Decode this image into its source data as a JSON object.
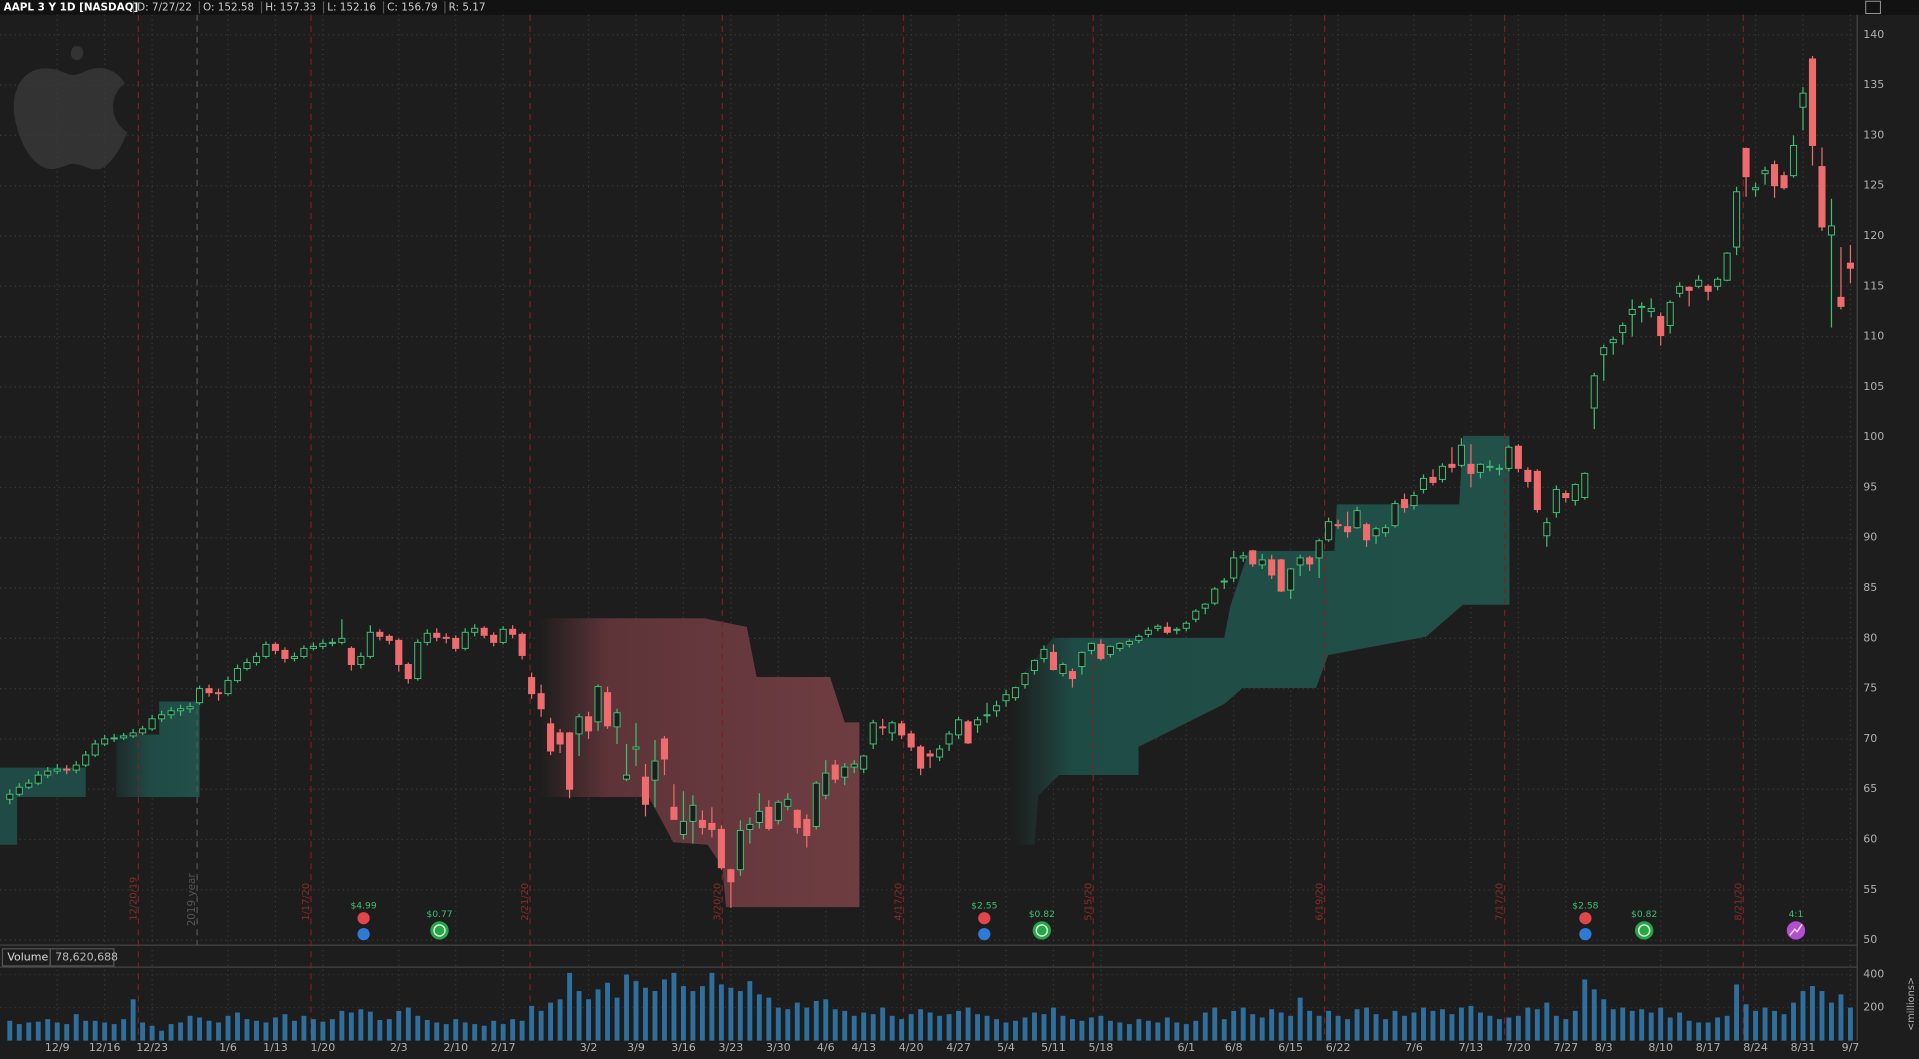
{
  "header": {
    "symbol": "AAPL 3 Y 1D [NASDAQ]",
    "fields": [
      "D: 7/27/22",
      "O: 152.58",
      "H: 157.33",
      "L: 152.16",
      "C: 156.79",
      "R: 5.17"
    ]
  },
  "chart_data": {
    "type": "candlestick",
    "categories": [
      null,
      null,
      null,
      null,
      null,
      "12/9",
      null,
      null,
      null,
      null,
      "12/16",
      null,
      null,
      null,
      null,
      "12/23",
      null,
      null,
      null,
      null,
      null,
      null,
      null,
      "1/6",
      null,
      null,
      null,
      null,
      "1/13",
      null,
      null,
      null,
      null,
      "1/20",
      null,
      null,
      null,
      null,
      null,
      null,
      null,
      "2/3",
      null,
      null,
      null,
      null,
      null,
      "2/10",
      null,
      null,
      null,
      null,
      "2/17",
      null,
      null,
      null,
      null,
      null,
      null,
      null,
      null,
      "3/2",
      null,
      null,
      null,
      null,
      "3/9",
      null,
      null,
      null,
      null,
      "3/16",
      null,
      null,
      null,
      null,
      "3/23",
      null,
      null,
      null,
      null,
      "3/30",
      null,
      null,
      null,
      null,
      "4/6",
      null,
      null,
      null,
      "4/13",
      null,
      null,
      null,
      null,
      "4/20",
      null,
      null,
      null,
      null,
      "4/27",
      null,
      null,
      null,
      null,
      "5/4",
      null,
      null,
      null,
      null,
      "5/11",
      null,
      null,
      null,
      null,
      "5/18",
      null,
      null,
      null,
      null,
      null,
      null,
      null,
      null,
      "6/1",
      null,
      null,
      null,
      null,
      "6/8",
      null,
      null,
      null,
      null,
      null,
      "6/15",
      null,
      null,
      null,
      null,
      "6/22",
      null,
      null,
      null,
      null,
      null,
      null,
      null,
      "7/6",
      null,
      null,
      null,
      null,
      null,
      "7/13",
      null,
      null,
      null,
      null,
      "7/20",
      null,
      null,
      null,
      null,
      "7/27",
      null,
      null,
      null,
      "8/3",
      null,
      null,
      null,
      null,
      null,
      "8/10",
      null,
      null,
      null,
      null,
      "8/17",
      null,
      null,
      null,
      null,
      "8/24",
      null,
      null,
      null,
      null,
      "8/31",
      null,
      null,
      null,
      null,
      "9/7"
    ],
    "candles": [
      [
        64.0,
        65.0,
        63.5,
        64.5
      ],
      [
        64.5,
        65.6,
        64.3,
        65.2
      ],
      [
        65.2,
        66.0,
        65.0,
        65.6
      ],
      [
        65.6,
        66.8,
        65.4,
        66.4
      ],
      [
        66.4,
        67.2,
        66.1,
        66.8
      ],
      [
        66.8,
        67.5,
        66.5,
        67.0
      ],
      [
        67.0,
        67.4,
        66.5,
        66.9
      ],
      [
        66.9,
        67.8,
        66.6,
        67.4
      ],
      [
        67.4,
        68.8,
        67.2,
        68.4
      ],
      [
        68.4,
        69.9,
        68.2,
        69.5
      ],
      [
        69.5,
        70.4,
        69.3,
        70.0
      ],
      [
        70.0,
        70.5,
        69.7,
        70.1
      ],
      [
        70.1,
        70.6,
        69.9,
        70.3
      ],
      [
        70.3,
        71.0,
        70.1,
        70.6
      ],
      [
        70.6,
        71.3,
        70.4,
        71.0
      ],
      [
        71.0,
        72.4,
        70.8,
        72.0
      ],
      [
        72.0,
        72.8,
        71.7,
        72.4
      ],
      [
        72.4,
        73.2,
        72.0,
        72.8
      ],
      [
        72.8,
        73.4,
        72.3,
        73.0
      ],
      [
        73.0,
        73.6,
        72.6,
        73.2
      ],
      [
        73.6,
        75.3,
        73.4,
        75.0
      ],
      [
        75.0,
        75.4,
        74.2,
        74.6
      ],
      [
        74.6,
        75.0,
        73.8,
        74.5
      ],
      [
        74.5,
        76.2,
        74.3,
        75.8
      ],
      [
        75.8,
        77.4,
        75.6,
        77.0
      ],
      [
        77.0,
        78.0,
        76.8,
        77.6
      ],
      [
        77.6,
        78.6,
        77.3,
        78.2
      ],
      [
        78.2,
        79.7,
        78.0,
        79.4
      ],
      [
        79.4,
        79.6,
        78.4,
        78.8
      ],
      [
        78.8,
        79.1,
        77.6,
        78.0
      ],
      [
        78.0,
        78.6,
        77.7,
        78.2
      ],
      [
        78.2,
        79.3,
        78.0,
        79.0
      ],
      [
        79.0,
        79.6,
        78.8,
        79.2
      ],
      [
        79.2,
        79.9,
        78.9,
        79.5
      ],
      [
        79.5,
        80.0,
        79.2,
        79.6
      ],
      [
        79.6,
        81.9,
        79.4,
        80.0
      ],
      [
        79.0,
        79.2,
        76.8,
        77.4
      ],
      [
        77.4,
        78.6,
        77.0,
        78.2
      ],
      [
        78.2,
        81.3,
        78.0,
        80.6
      ],
      [
        80.6,
        80.9,
        79.8,
        80.2
      ],
      [
        80.2,
        80.4,
        79.4,
        79.8
      ],
      [
        79.8,
        80.0,
        76.7,
        77.4
      ],
      [
        77.4,
        77.6,
        75.5,
        76.0
      ],
      [
        76.0,
        79.9,
        75.8,
        79.6
      ],
      [
        79.6,
        80.9,
        79.3,
        80.5
      ],
      [
        80.5,
        81.0,
        79.7,
        80.1
      ],
      [
        80.1,
        80.5,
        79.5,
        80.0
      ],
      [
        80.0,
        80.3,
        78.7,
        79.0
      ],
      [
        79.0,
        81.0,
        78.8,
        80.6
      ],
      [
        80.6,
        81.4,
        80.2,
        81.0
      ],
      [
        81.0,
        81.2,
        80.0,
        80.3
      ],
      [
        80.3,
        80.6,
        79.2,
        79.6
      ],
      [
        79.6,
        81.2,
        79.4,
        80.9
      ],
      [
        80.9,
        81.3,
        80.0,
        80.4
      ],
      [
        80.4,
        80.6,
        77.9,
        78.3
      ],
      [
        76.1,
        76.6,
        74.0,
        74.5
      ],
      [
        74.5,
        75.4,
        72.2,
        73.0
      ],
      [
        71.5,
        72.1,
        68.4,
        68.8
      ],
      [
        70.6,
        71.0,
        68.6,
        69.5
      ],
      [
        70.6,
        70.7,
        64.1,
        65.0
      ],
      [
        70.5,
        72.5,
        68.3,
        72.2
      ],
      [
        72.2,
        72.7,
        70.0,
        70.8
      ],
      [
        71.7,
        75.4,
        70.8,
        75.2
      ],
      [
        74.6,
        75.2,
        71.0,
        71.3
      ],
      [
        71.2,
        73.0,
        69.5,
        72.6
      ],
      [
        66.0,
        69.5,
        65.8,
        66.4
      ],
      [
        69.0,
        71.6,
        67.3,
        69.2
      ],
      [
        66.2,
        67.5,
        62.3,
        63.5
      ],
      [
        65.9,
        69.9,
        63.2,
        67.8
      ],
      [
        70.0,
        70.3,
        66.4,
        68.0
      ],
      [
        63.2,
        65.5,
        62.0,
        62.0
      ],
      [
        60.5,
        64.8,
        60.0,
        61.8
      ],
      [
        61.8,
        64.4,
        59.6,
        63.4
      ],
      [
        61.9,
        62.9,
        60.5,
        61.2
      ],
      [
        61.6,
        63.2,
        60.2,
        61.0
      ],
      [
        61.0,
        61.4,
        57.0,
        57.2
      ],
      [
        57.0,
        57.1,
        53.2,
        55.8
      ],
      [
        57.0,
        61.9,
        56.4,
        60.9
      ],
      [
        61.0,
        62.2,
        59.6,
        61.5
      ],
      [
        61.7,
        64.6,
        61.1,
        62.8
      ],
      [
        63.2,
        63.9,
        60.9,
        61.1
      ],
      [
        61.9,
        63.9,
        61.5,
        63.7
      ],
      [
        63.3,
        64.6,
        62.9,
        64.0
      ],
      [
        62.9,
        63.0,
        60.6,
        61.2
      ],
      [
        62.0,
        62.5,
        59.2,
        60.4
      ],
      [
        61.3,
        65.8,
        61.0,
        65.6
      ],
      [
        64.4,
        67.9,
        64.0,
        66.6
      ],
      [
        67.4,
        67.9,
        65.6,
        66.0
      ],
      [
        66.2,
        67.6,
        65.4,
        67.2
      ],
      [
        67.2,
        67.9,
        66.6,
        67.5
      ],
      [
        67.0,
        68.4,
        66.6,
        68.3
      ],
      [
        69.5,
        71.9,
        69.0,
        71.6
      ],
      [
        71.2,
        72.0,
        70.4,
        71.1
      ],
      [
        70.6,
        71.8,
        69.8,
        71.6
      ],
      [
        71.5,
        71.8,
        70.0,
        70.4
      ],
      [
        70.5,
        70.8,
        68.8,
        69.2
      ],
      [
        69.2,
        69.4,
        66.4,
        67.1
      ],
      [
        68.5,
        68.9,
        67.1,
        68.3
      ],
      [
        68.2,
        69.4,
        67.8,
        69.0
      ],
      [
        69.5,
        70.8,
        68.8,
        70.5
      ],
      [
        70.4,
        72.2,
        70.0,
        71.9
      ],
      [
        71.7,
        71.9,
        69.5,
        69.6
      ],
      [
        71.4,
        72.2,
        70.6,
        71.9
      ],
      [
        72.3,
        73.6,
        71.6,
        72.4
      ],
      [
        72.8,
        73.8,
        72.2,
        73.3
      ],
      [
        73.8,
        74.9,
        73.2,
        74.4
      ],
      [
        74.1,
        75.2,
        73.8,
        75.1
      ],
      [
        75.4,
        76.6,
        75.0,
        76.5
      ],
      [
        76.8,
        77.9,
        76.4,
        77.8
      ],
      [
        78.0,
        79.3,
        77.6,
        78.9
      ],
      [
        78.6,
        79.4,
        76.8,
        76.9
      ],
      [
        76.5,
        77.6,
        76.2,
        77.4
      ],
      [
        76.7,
        77.0,
        75.1,
        76.0
      ],
      [
        77.2,
        78.7,
        76.4,
        78.6
      ],
      [
        78.8,
        79.6,
        78.4,
        79.5
      ],
      [
        79.4,
        79.9,
        77.8,
        78.0
      ],
      [
        78.4,
        79.3,
        78.1,
        79.2
      ],
      [
        79.0,
        79.6,
        78.7,
        79.5
      ],
      [
        79.4,
        79.9,
        79.1,
        79.7
      ],
      [
        79.8,
        80.4,
        79.5,
        80.2
      ],
      [
        80.4,
        81.1,
        80.1,
        80.8
      ],
      [
        81.0,
        81.4,
        80.7,
        81.2
      ],
      [
        81.1,
        81.6,
        80.4,
        80.6
      ],
      [
        80.8,
        81.1,
        80.4,
        80.9
      ],
      [
        81.0,
        81.7,
        80.7,
        81.5
      ],
      [
        81.9,
        82.9,
        81.6,
        82.7
      ],
      [
        83.0,
        83.5,
        82.4,
        83.4
      ],
      [
        83.5,
        85.1,
        83.3,
        84.9
      ],
      [
        85.6,
        86.0,
        84.9,
        85.7
      ],
      [
        86.0,
        88.7,
        85.6,
        88.0
      ],
      [
        88.0,
        88.6,
        87.6,
        88.2
      ],
      [
        88.7,
        88.8,
        87.1,
        87.4
      ],
      [
        87.3,
        88.4,
        86.9,
        87.8
      ],
      [
        87.8,
        88.3,
        85.9,
        86.3
      ],
      [
        87.8,
        87.9,
        84.6,
        84.7
      ],
      [
        84.8,
        87.0,
        83.9,
        86.9
      ],
      [
        87.3,
        88.3,
        86.2,
        88.0
      ],
      [
        88.0,
        88.2,
        86.7,
        87.4
      ],
      [
        88.0,
        89.9,
        86.0,
        89.7
      ],
      [
        89.8,
        92.0,
        89.6,
        91.6
      ],
      [
        91.3,
        91.8,
        90.9,
        91.2
      ],
      [
        91.1,
        92.6,
        90.0,
        90.6
      ],
      [
        91.0,
        93.1,
        90.9,
        92.7
      ],
      [
        91.3,
        91.5,
        89.1,
        89.8
      ],
      [
        90.2,
        91.1,
        89.4,
        90.9
      ],
      [
        90.5,
        91.3,
        90.1,
        91.0
      ],
      [
        91.2,
        93.7,
        91.0,
        93.4
      ],
      [
        93.8,
        94.4,
        92.5,
        93.0
      ],
      [
        93.2,
        94.6,
        92.8,
        94.2
      ],
      [
        94.8,
        96.3,
        94.4,
        95.9
      ],
      [
        96.0,
        96.8,
        95.2,
        95.5
      ],
      [
        95.8,
        97.4,
        95.5,
        97.1
      ],
      [
        97.3,
        99.0,
        96.5,
        97.0
      ],
      [
        97.2,
        99.9,
        97.0,
        99.2
      ],
      [
        97.3,
        99.3,
        95.0,
        96.4
      ],
      [
        96.5,
        97.4,
        95.9,
        97.3
      ],
      [
        97.0,
        97.7,
        96.6,
        97.1
      ],
      [
        96.8,
        97.3,
        96.2,
        96.9
      ],
      [
        96.9,
        99.2,
        96.6,
        99.0
      ],
      [
        99.1,
        99.3,
        96.5,
        96.9
      ],
      [
        96.7,
        97.0,
        95.0,
        95.6
      ],
      [
        96.6,
        96.8,
        92.5,
        92.8
      ],
      [
        90.2,
        92.0,
        89.1,
        91.5
      ],
      [
        92.5,
        95.2,
        92.0,
        94.8
      ],
      [
        94.4,
        94.7,
        93.5,
        94.0
      ],
      [
        93.7,
        95.4,
        93.2,
        95.3
      ],
      [
        94.0,
        96.5,
        93.8,
        96.4
      ],
      [
        102.9,
        106.4,
        100.8,
        106.1
      ],
      [
        108.2,
        109.2,
        105.6,
        108.9
      ],
      [
        109.4,
        110.0,
        108.2,
        109.7
      ],
      [
        110.4,
        111.4,
        109.2,
        111.1
      ],
      [
        112.2,
        113.7,
        110.0,
        112.7
      ],
      [
        113.0,
        113.4,
        111.4,
        113.0
      ],
      [
        112.5,
        113.8,
        111.9,
        112.8
      ],
      [
        112.0,
        112.4,
        109.1,
        110.1
      ],
      [
        111.1,
        113.6,
        110.3,
        113.4
      ],
      [
        114.3,
        115.4,
        113.9,
        115.0
      ],
      [
        114.9,
        115.0,
        113.0,
        114.6
      ],
      [
        115.0,
        116.1,
        114.8,
        115.6
      ],
      [
        115.0,
        115.2,
        113.6,
        114.5
      ],
      [
        115.0,
        115.9,
        114.6,
        115.7
      ],
      [
        115.6,
        118.4,
        115.5,
        118.3
      ],
      [
        118.9,
        124.9,
        118.1,
        124.4
      ],
      [
        128.7,
        128.8,
        123.9,
        125.9
      ],
      [
        124.6,
        125.3,
        123.9,
        124.8
      ],
      [
        126.2,
        126.9,
        125.1,
        126.5
      ],
      [
        127.1,
        127.5,
        123.8,
        125.0
      ],
      [
        126.0,
        126.4,
        124.6,
        124.8
      ],
      [
        126.0,
        130.0,
        125.8,
        129.0
      ],
      [
        132.8,
        134.8,
        130.5,
        134.2
      ],
      [
        137.6,
        137.9,
        127.0,
        129.0
      ],
      [
        126.9,
        128.8,
        120.5,
        120.9
      ],
      [
        120.1,
        123.7,
        110.9,
        121.0
      ],
      [
        113.9,
        118.9,
        112.7,
        113.0
      ],
      [
        117.3,
        119.1,
        115.3,
        116.8
      ]
    ],
    "up_color": "#3fbf74",
    "down_color": "#ee6b6e",
    "ylim": [
      49.5,
      142
    ],
    "yticks": [
      50,
      55,
      60,
      65,
      70,
      75,
      80,
      85,
      90,
      95,
      100,
      105,
      110,
      115,
      120,
      125,
      130,
      135,
      140
    ],
    "grid": true
  },
  "volume": {
    "title": "Volume",
    "last": "78,620,688",
    "color": "#2e6f9e",
    "unit_label": "<millions>",
    "ylim": [
      0,
      437
    ],
    "yticks": [
      200,
      400
    ],
    "values": [
      120,
      100,
      110,
      115,
      130,
      110,
      100,
      160,
      120,
      120,
      110,
      100,
      130,
      250,
      110,
      90,
      60,
      100,
      110,
      150,
      140,
      120,
      110,
      150,
      170,
      130,
      120,
      110,
      140,
      160,
      120,
      150,
      130,
      115,
      130,
      180,
      170,
      190,
      175,
      125,
      130,
      180,
      200,
      150,
      125,
      110,
      100,
      130,
      110,
      100,
      90,
      120,
      100,
      130,
      120,
      210,
      180,
      230,
      250,
      410,
      300,
      250,
      310,
      350,
      260,
      400,
      360,
      320,
      300,
      370,
      410,
      330,
      300,
      330,
      410,
      340,
      320,
      300,
      360,
      280,
      260,
      200,
      190,
      230,
      200,
      240,
      250,
      190,
      180,
      150,
      170,
      160,
      200,
      150,
      130,
      160,
      190,
      170,
      150,
      160,
      180,
      200,
      160,
      150,
      130,
      110,
      120,
      140,
      170,
      160,
      200,
      150,
      130,
      120,
      140,
      150,
      120,
      110,
      100,
      130,
      120,
      110,
      140,
      110,
      100,
      120,
      170,
      200,
      130,
      180,
      200,
      160,
      140,
      190,
      170,
      150,
      260,
      180,
      150,
      180,
      150,
      130,
      190,
      200,
      160,
      130,
      180,
      150,
      170,
      200,
      180,
      190,
      160,
      200,
      210,
      170,
      150,
      130,
      140,
      150,
      200,
      190,
      230,
      150,
      130,
      180,
      370,
      310,
      250,
      190,
      200,
      180,
      190,
      170,
      200,
      140,
      170,
      120,
      110,
      110,
      140,
      150,
      340,
      220,
      180,
      200,
      180,
      160,
      230,
      300,
      330,
      300,
      230,
      280,
      200
    ]
  },
  "expirations": [
    "12/20/19",
    "1/17/20",
    "2/21/20",
    "3/20/20",
    "4/17/20",
    "5/15/20",
    "6/19/20",
    "7/17/20",
    "8/21/20"
  ],
  "year_marker": "2019 year",
  "events": [
    "$4.99",
    "$0.77",
    "$2.55",
    "$0.82",
    "$2.58",
    "$0.82",
    "4:1"
  ]
}
